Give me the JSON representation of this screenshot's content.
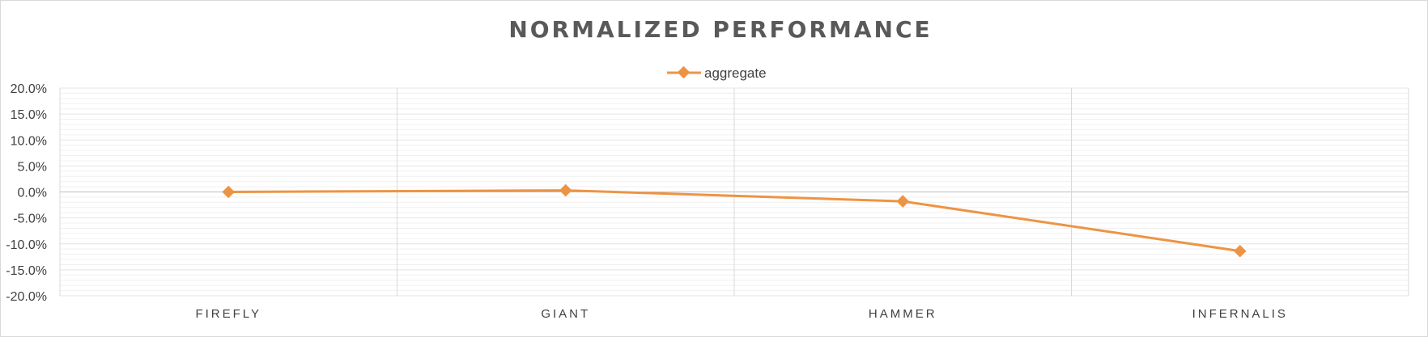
{
  "chart_data": {
    "type": "line",
    "title": "NORMALIZED PERFORMANCE",
    "xlabel": "",
    "ylabel": "",
    "categories": [
      "FIREFLY",
      "GIANT",
      "HAMMER",
      "INFERNALIS"
    ],
    "series": [
      {
        "name": "aggregate",
        "values": [
          0.0,
          0.3,
          -1.8,
          -11.4
        ],
        "color": "#ED9444",
        "marker": "diamond"
      }
    ],
    "ylim": [
      -20,
      20
    ],
    "yticks": [
      "20.0%",
      "15.0%",
      "10.0%",
      "5.0%",
      "0.0%",
      "-5.0%",
      "-10.0%",
      "-15.0%",
      "-20.0%"
    ],
    "y_tick_values": [
      20,
      15,
      10,
      5,
      0,
      -5,
      -10,
      -15,
      -20
    ],
    "minor_grid_step": 1,
    "grid": true,
    "legend_position": "top-center"
  }
}
